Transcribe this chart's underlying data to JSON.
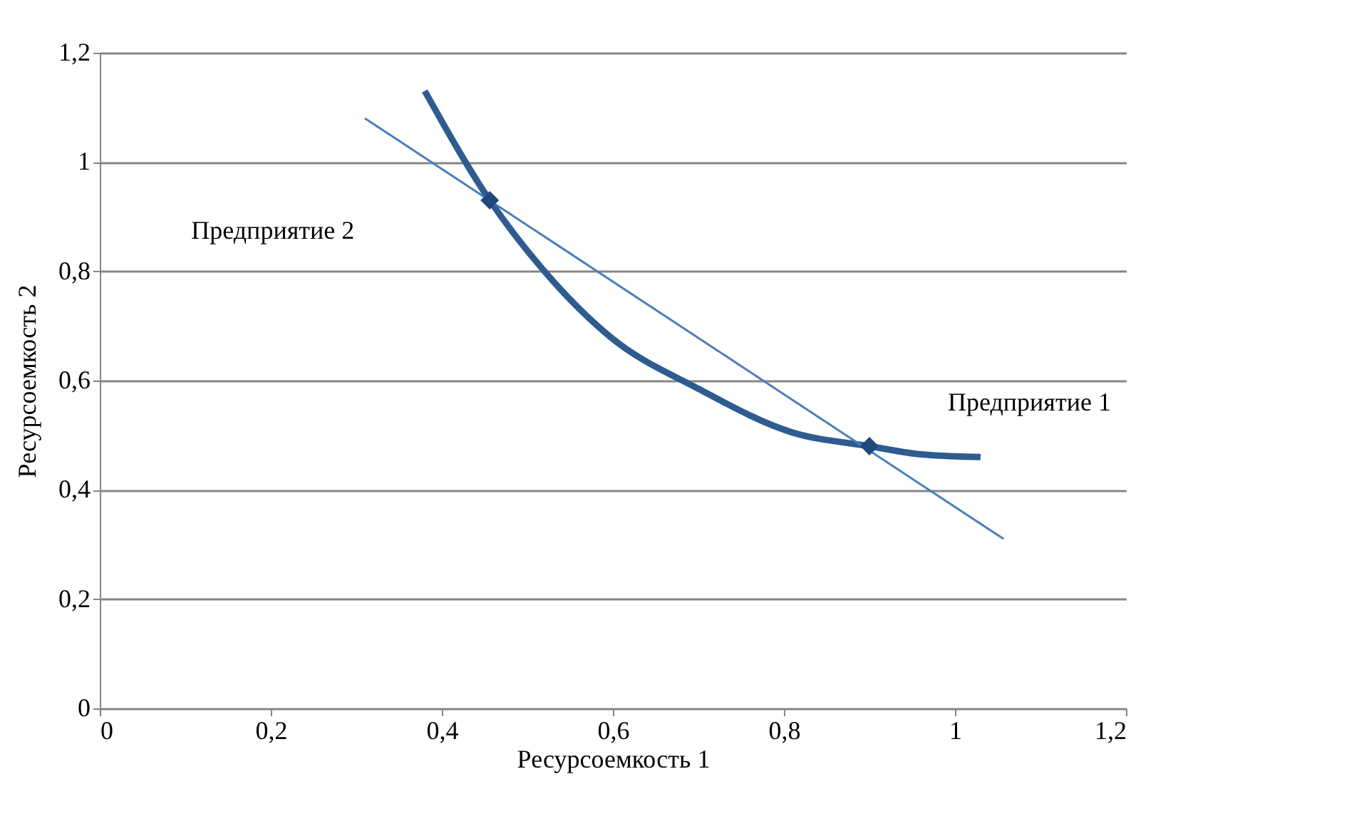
{
  "chart_data": {
    "type": "line",
    "xlabel": "Ресурсоемкость 1",
    "ylabel": "Ресурсоемкость 2",
    "xlim": [
      0,
      1.2
    ],
    "xticks": [
      0,
      {
        "value": 0.2,
        "label": "0,2"
      },
      {
        "value": 0.4,
        "label": "0,4"
      },
      {
        "value": 0.6,
        "label": "0,6"
      },
      {
        "value": 0.8,
        "label": "0,8"
      },
      1,
      {
        "value": 1.2,
        "label": "1,2"
      }
    ],
    "ylim": [
      0,
      1.2
    ],
    "yticks": [
      0,
      {
        "value": 0.2,
        "label": "0,2"
      },
      {
        "value": 0.4,
        "label": "0,4"
      },
      {
        "value": 0.6,
        "label": "0,6"
      },
      {
        "value": 0.8,
        "label": "0,8"
      },
      1,
      {
        "value": 1.2,
        "label": "1,2"
      }
    ],
    "grid": "y",
    "series": [
      {
        "color": "#2e5c8f",
        "x": [
          0.38,
          0.456,
          0.52,
          0.597,
          0.7,
          0.81,
          0.9,
          0.96,
          1.03
        ],
        "values": [
          1.13,
          0.93,
          0.8,
          0.68,
          0.585,
          0.505,
          0.48,
          0.465,
          0.46
        ]
      },
      {
        "color": "#4a7ebb",
        "x": [
          0.31,
          1.057
        ],
        "values": [
          1.08,
          0.31
        ]
      },
      {
        "type": "scatter",
        "marker": "diamond",
        "color": "#1f497d",
        "x": [
          0.456,
          0.9
        ],
        "values": [
          0.93,
          0.48
        ]
      }
    ],
    "annotations": [
      "Предприятие 2",
      "Предприятие 1"
    ]
  }
}
